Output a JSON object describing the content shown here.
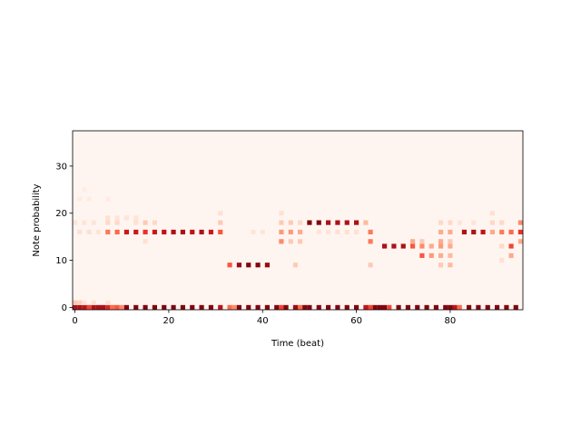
{
  "chart_data": {
    "type": "heatmap",
    "title": "",
    "xlabel": "Time (beat)",
    "ylabel": "Note probability",
    "xlim": [
      -0.5,
      95.5
    ],
    "ylim": [
      -0.5,
      37.5
    ],
    "xticks": [
      0,
      20,
      40,
      60,
      80
    ],
    "yticks": [
      0,
      10,
      20,
      30
    ],
    "colormap": "Reds",
    "background_color": "#fff5f0",
    "value_range": [
      0,
      1
    ],
    "rows": 38,
    "columns": 96,
    "cells": [
      {
        "x": 0,
        "y": 0,
        "v": 0.85
      },
      {
        "x": 1,
        "y": 0,
        "v": 0.85
      },
      {
        "x": 2,
        "y": 0,
        "v": 0.8
      },
      {
        "x": 3,
        "y": 0,
        "v": 0.6
      },
      {
        "x": 4,
        "y": 0,
        "v": 0.85
      },
      {
        "x": 5,
        "y": 0,
        "v": 0.85
      },
      {
        "x": 6,
        "y": 0,
        "v": 0.85
      },
      {
        "x": 7,
        "y": 0,
        "v": 0.7
      },
      {
        "x": 8,
        "y": 0,
        "v": 0.5
      },
      {
        "x": 9,
        "y": 0,
        "v": 0.55
      },
      {
        "x": 10,
        "y": 0,
        "v": 0.4
      },
      {
        "x": 11,
        "y": 0,
        "v": 0.95
      },
      {
        "x": 13,
        "y": 0,
        "v": 0.95
      },
      {
        "x": 15,
        "y": 0,
        "v": 0.95
      },
      {
        "x": 17,
        "y": 0,
        "v": 0.95
      },
      {
        "x": 19,
        "y": 0,
        "v": 0.95
      },
      {
        "x": 21,
        "y": 0,
        "v": 0.95
      },
      {
        "x": 23,
        "y": 0,
        "v": 0.95
      },
      {
        "x": 25,
        "y": 0,
        "v": 0.95
      },
      {
        "x": 27,
        "y": 0,
        "v": 0.95
      },
      {
        "x": 29,
        "y": 0,
        "v": 0.95
      },
      {
        "x": 31,
        "y": 0,
        "v": 0.8
      },
      {
        "x": 33,
        "y": 0,
        "v": 0.5
      },
      {
        "x": 34,
        "y": 0,
        "v": 0.4
      },
      {
        "x": 35,
        "y": 0,
        "v": 0.95
      },
      {
        "x": 37,
        "y": 0,
        "v": 0.95
      },
      {
        "x": 39,
        "y": 0,
        "v": 0.95
      },
      {
        "x": 41,
        "y": 0,
        "v": 0.95
      },
      {
        "x": 43,
        "y": 0,
        "v": 0.95
      },
      {
        "x": 44,
        "y": 0,
        "v": 0.6
      },
      {
        "x": 45,
        "y": 0,
        "v": 0.95
      },
      {
        "x": 47,
        "y": 0,
        "v": 0.9
      },
      {
        "x": 48,
        "y": 0,
        "v": 0.5
      },
      {
        "x": 49,
        "y": 0,
        "v": 0.95
      },
      {
        "x": 50,
        "y": 0,
        "v": 0.95
      },
      {
        "x": 52,
        "y": 0,
        "v": 0.95
      },
      {
        "x": 54,
        "y": 0,
        "v": 0.95
      },
      {
        "x": 56,
        "y": 0,
        "v": 0.95
      },
      {
        "x": 58,
        "y": 0,
        "v": 0.95
      },
      {
        "x": 60,
        "y": 0,
        "v": 0.95
      },
      {
        "x": 62,
        "y": 0,
        "v": 0.8
      },
      {
        "x": 63,
        "y": 0,
        "v": 0.6
      },
      {
        "x": 64,
        "y": 0,
        "v": 0.95
      },
      {
        "x": 65,
        "y": 0,
        "v": 0.95
      },
      {
        "x": 66,
        "y": 0,
        "v": 0.95
      },
      {
        "x": 67,
        "y": 0,
        "v": 0.6
      },
      {
        "x": 69,
        "y": 0,
        "v": 0.95
      },
      {
        "x": 71,
        "y": 0,
        "v": 0.95
      },
      {
        "x": 73,
        "y": 0,
        "v": 0.95
      },
      {
        "x": 75,
        "y": 0,
        "v": 0.95
      },
      {
        "x": 77,
        "y": 0,
        "v": 0.95
      },
      {
        "x": 79,
        "y": 0,
        "v": 0.95
      },
      {
        "x": 80,
        "y": 0,
        "v": 0.95
      },
      {
        "x": 81,
        "y": 0,
        "v": 0.8
      },
      {
        "x": 82,
        "y": 0,
        "v": 0.5
      },
      {
        "x": 84,
        "y": 0,
        "v": 0.95
      },
      {
        "x": 86,
        "y": 0,
        "v": 0.95
      },
      {
        "x": 88,
        "y": 0,
        "v": 0.95
      },
      {
        "x": 90,
        "y": 0,
        "v": 0.95
      },
      {
        "x": 92,
        "y": 0,
        "v": 0.95
      },
      {
        "x": 94,
        "y": 0,
        "v": 0.95
      },
      {
        "x": 0,
        "y": 1,
        "v": 0.2
      },
      {
        "x": 1,
        "y": 1,
        "v": 0.18
      },
      {
        "x": 2,
        "y": 1,
        "v": 0.1
      },
      {
        "x": 4,
        "y": 1,
        "v": 0.12
      },
      {
        "x": 7,
        "y": 1,
        "v": 0.1
      },
      {
        "x": 7,
        "y": 16,
        "v": 0.45
      },
      {
        "x": 9,
        "y": 16,
        "v": 0.5
      },
      {
        "x": 11,
        "y": 16,
        "v": 0.75
      },
      {
        "x": 13,
        "y": 16,
        "v": 0.75
      },
      {
        "x": 15,
        "y": 16,
        "v": 0.65
      },
      {
        "x": 17,
        "y": 16,
        "v": 0.75
      },
      {
        "x": 19,
        "y": 16,
        "v": 0.8
      },
      {
        "x": 21,
        "y": 16,
        "v": 0.85
      },
      {
        "x": 23,
        "y": 16,
        "v": 0.85
      },
      {
        "x": 25,
        "y": 16,
        "v": 0.8
      },
      {
        "x": 27,
        "y": 16,
        "v": 0.85
      },
      {
        "x": 29,
        "y": 16,
        "v": 0.75
      },
      {
        "x": 31,
        "y": 16,
        "v": 0.55
      },
      {
        "x": 1,
        "y": 16,
        "v": 0.12
      },
      {
        "x": 3,
        "y": 16,
        "v": 0.12
      },
      {
        "x": 5,
        "y": 16,
        "v": 0.1
      },
      {
        "x": 44,
        "y": 16,
        "v": 0.35
      },
      {
        "x": 46,
        "y": 16,
        "v": 0.35
      },
      {
        "x": 48,
        "y": 16,
        "v": 0.3
      },
      {
        "x": 63,
        "y": 16,
        "v": 0.45
      },
      {
        "x": 83,
        "y": 16,
        "v": 0.85
      },
      {
        "x": 85,
        "y": 16,
        "v": 0.85
      },
      {
        "x": 87,
        "y": 16,
        "v": 0.8
      },
      {
        "x": 89,
        "y": 16,
        "v": 0.3
      },
      {
        "x": 91,
        "y": 16,
        "v": 0.45
      },
      {
        "x": 93,
        "y": 16,
        "v": 0.5
      },
      {
        "x": 95,
        "y": 16,
        "v": 0.65
      },
      {
        "x": 7,
        "y": 18,
        "v": 0.15
      },
      {
        "x": 9,
        "y": 18,
        "v": 0.15
      },
      {
        "x": 13,
        "y": 18,
        "v": 0.12
      },
      {
        "x": 15,
        "y": 18,
        "v": 0.2
      },
      {
        "x": 17,
        "y": 18,
        "v": 0.15
      },
      {
        "x": 31,
        "y": 18,
        "v": 0.2
      },
      {
        "x": 44,
        "y": 18,
        "v": 0.2
      },
      {
        "x": 46,
        "y": 18,
        "v": 0.2
      },
      {
        "x": 48,
        "y": 18,
        "v": 0.15
      },
      {
        "x": 50,
        "y": 18,
        "v": 0.95
      },
      {
        "x": 52,
        "y": 18,
        "v": 0.95
      },
      {
        "x": 54,
        "y": 18,
        "v": 0.85
      },
      {
        "x": 56,
        "y": 18,
        "v": 0.85
      },
      {
        "x": 58,
        "y": 18,
        "v": 0.85
      },
      {
        "x": 60,
        "y": 18,
        "v": 0.85
      },
      {
        "x": 62,
        "y": 18,
        "v": 0.25
      },
      {
        "x": 89,
        "y": 18,
        "v": 0.15
      },
      {
        "x": 91,
        "y": 18,
        "v": 0.15
      },
      {
        "x": 95,
        "y": 18,
        "v": 0.4
      },
      {
        "x": 80,
        "y": 18,
        "v": 0.15
      },
      {
        "x": 78,
        "y": 18,
        "v": 0.15
      },
      {
        "x": 33,
        "y": 9,
        "v": 0.55
      },
      {
        "x": 35,
        "y": 9,
        "v": 0.9
      },
      {
        "x": 37,
        "y": 9,
        "v": 0.95
      },
      {
        "x": 39,
        "y": 9,
        "v": 0.95
      },
      {
        "x": 41,
        "y": 9,
        "v": 0.9
      },
      {
        "x": 47,
        "y": 9,
        "v": 0.2
      },
      {
        "x": 63,
        "y": 9,
        "v": 0.2
      },
      {
        "x": 78,
        "y": 9,
        "v": 0.2
      },
      {
        "x": 80,
        "y": 9,
        "v": 0.25
      },
      {
        "x": 44,
        "y": 14,
        "v": 0.4
      },
      {
        "x": 46,
        "y": 14,
        "v": 0.2
      },
      {
        "x": 48,
        "y": 14,
        "v": 0.2
      },
      {
        "x": 63,
        "y": 14,
        "v": 0.45
      },
      {
        "x": 93,
        "y": 13,
        "v": 0.6
      },
      {
        "x": 95,
        "y": 14,
        "v": 0.3
      },
      {
        "x": 66,
        "y": 13,
        "v": 0.85
      },
      {
        "x": 68,
        "y": 13,
        "v": 0.85
      },
      {
        "x": 70,
        "y": 13,
        "v": 0.85
      },
      {
        "x": 72,
        "y": 13,
        "v": 0.55
      },
      {
        "x": 74,
        "y": 13,
        "v": 0.4
      },
      {
        "x": 76,
        "y": 13,
        "v": 0.3
      },
      {
        "x": 78,
        "y": 13,
        "v": 0.35
      },
      {
        "x": 80,
        "y": 13,
        "v": 0.3
      },
      {
        "x": 91,
        "y": 13,
        "v": 0.15
      },
      {
        "x": 74,
        "y": 11,
        "v": 0.55
      },
      {
        "x": 76,
        "y": 11,
        "v": 0.35
      },
      {
        "x": 78,
        "y": 11,
        "v": 0.3
      },
      {
        "x": 80,
        "y": 11,
        "v": 0.25
      },
      {
        "x": 93,
        "y": 11,
        "v": 0.3
      },
      {
        "x": 91,
        "y": 10,
        "v": 0.12
      },
      {
        "x": 78,
        "y": 14,
        "v": 0.3
      },
      {
        "x": 80,
        "y": 14,
        "v": 0.2
      },
      {
        "x": 80,
        "y": 16,
        "v": 0.3
      },
      {
        "x": 78,
        "y": 16,
        "v": 0.3
      },
      {
        "x": 72,
        "y": 14,
        "v": 0.3
      },
      {
        "x": 74,
        "y": 14,
        "v": 0.2
      },
      {
        "x": 40,
        "y": 16,
        "v": 0.1
      },
      {
        "x": 38,
        "y": 16,
        "v": 0.1
      },
      {
        "x": 0,
        "y": 18,
        "v": 0.1
      },
      {
        "x": 2,
        "y": 18,
        "v": 0.1
      },
      {
        "x": 4,
        "y": 18,
        "v": 0.1
      },
      {
        "x": 7,
        "y": 19,
        "v": 0.12
      },
      {
        "x": 9,
        "y": 19,
        "v": 0.1
      },
      {
        "x": 11,
        "y": 19,
        "v": 0.1
      },
      {
        "x": 13,
        "y": 19,
        "v": 0.1
      },
      {
        "x": 15,
        "y": 14,
        "v": 0.12
      },
      {
        "x": 31,
        "y": 20,
        "v": 0.12
      },
      {
        "x": 44,
        "y": 20,
        "v": 0.12
      },
      {
        "x": 89,
        "y": 20,
        "v": 0.12
      },
      {
        "x": 82,
        "y": 18,
        "v": 0.1
      },
      {
        "x": 85,
        "y": 18,
        "v": 0.1
      },
      {
        "x": 52,
        "y": 16,
        "v": 0.1
      },
      {
        "x": 54,
        "y": 16,
        "v": 0.1
      },
      {
        "x": 56,
        "y": 16,
        "v": 0.12
      },
      {
        "x": 58,
        "y": 16,
        "v": 0.12
      },
      {
        "x": 60,
        "y": 16,
        "v": 0.12
      },
      {
        "x": 1,
        "y": 23,
        "v": 0.06
      },
      {
        "x": 3,
        "y": 23,
        "v": 0.06
      },
      {
        "x": 7,
        "y": 23,
        "v": 0.06
      },
      {
        "x": 2,
        "y": 25,
        "v": 0.05
      }
    ]
  }
}
